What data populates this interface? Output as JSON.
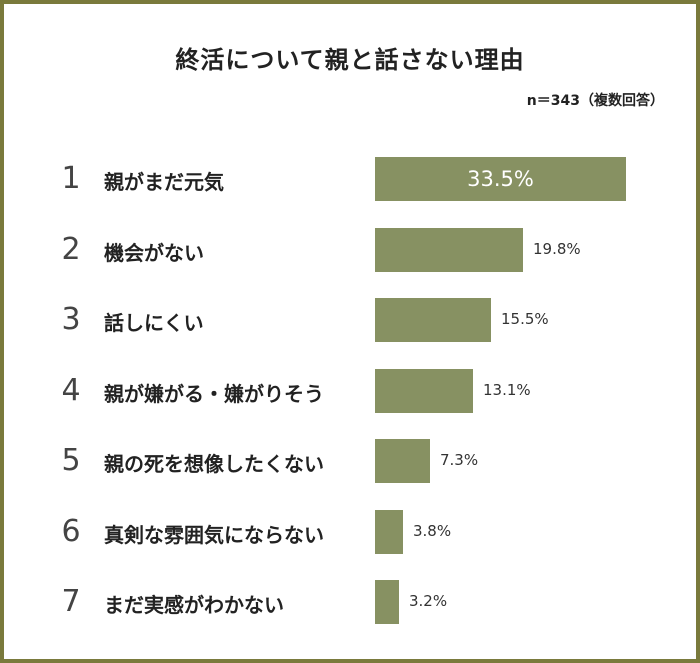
{
  "colors": {
    "bar": "#879162",
    "frame": "#7a7a3c"
  },
  "chart_data": {
    "type": "bar",
    "orientation": "horizontal",
    "title": "終活について親と話さない理由",
    "note": "n＝343（複数回答）",
    "categories": [
      "親がまだ元気",
      "機会がない",
      "話しにくい",
      "親が嫌がる・嫌がりそう",
      "親の死を想像したくない",
      "真剣な雰囲気にならない",
      "まだ実感がわかない"
    ],
    "ranks": [
      "1",
      "2",
      "3",
      "4",
      "5",
      "6",
      "7"
    ],
    "values": [
      33.5,
      19.8,
      15.5,
      13.1,
      7.3,
      3.8,
      3.2
    ],
    "value_labels": [
      "33.5%",
      "19.8%",
      "15.5%",
      "13.1%",
      "7.3%",
      "3.8%",
      "3.2%"
    ],
    "xlim": [
      0,
      33.5
    ]
  }
}
